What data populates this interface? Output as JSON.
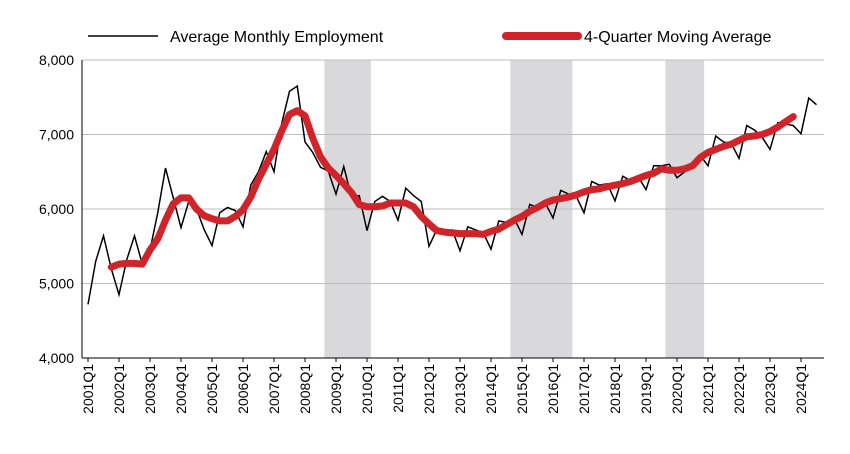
{
  "chart_data": {
    "type": "line",
    "title": "",
    "xlabel": "",
    "ylabel": "",
    "ylim": [
      4000,
      8000
    ],
    "y_ticks": [
      "4,000",
      "5,000",
      "6,000",
      "7,000",
      "8,000"
    ],
    "x_tick_labels": [
      "2001Q1",
      "2002Q1",
      "2003Q1",
      "2004Q1",
      "2005Q1",
      "2006Q1",
      "2007Q1",
      "2008Q1",
      "2009Q1",
      "2010Q1",
      "2011Q1",
      "2012Q1",
      "2013Q1",
      "2014Q1",
      "2015Q1",
      "2016Q1",
      "2017Q1",
      "2018Q1",
      "2019Q1",
      "2020Q1",
      "2021Q1",
      "2022Q1",
      "2023Q1",
      "2024Q1"
    ],
    "legend_position": "top",
    "grid": "horizontal",
    "recession_shading": [
      [
        "2008Q4",
        "2010Q1"
      ],
      [
        "2014Q4",
        "2016Q3"
      ],
      [
        "2019Q4",
        "2020Q4"
      ]
    ],
    "series": [
      {
        "name": "Average Monthly Employment",
        "color": "#000000",
        "start": "2001Q1",
        "values": [
          4720,
          5300,
          5640,
          5200,
          4850,
          5320,
          5640,
          5260,
          5450,
          5950,
          6550,
          6150,
          5750,
          6100,
          6000,
          5720,
          5510,
          5950,
          6020,
          5980,
          5760,
          6320,
          6500,
          6770,
          6500,
          7150,
          7580,
          7650,
          6900,
          6760,
          6560,
          6510,
          6200,
          6570,
          6160,
          6180,
          5710,
          6100,
          6170,
          6100,
          5850,
          6280,
          6180,
          6100,
          5500,
          5720,
          5680,
          5720,
          5440,
          5760,
          5720,
          5680,
          5460,
          5840,
          5820,
          5870,
          5660,
          6060,
          6020,
          6080,
          5880,
          6250,
          6200,
          6170,
          5950,
          6370,
          6320,
          6340,
          6110,
          6440,
          6380,
          6430,
          6260,
          6580,
          6580,
          6600,
          6420,
          6500,
          6560,
          6720,
          6580,
          6980,
          6900,
          6880,
          6680,
          7120,
          7060,
          6960,
          6800,
          7160,
          7140,
          7120,
          7010,
          7490,
          7400
        ]
      },
      {
        "name": "4-Quarter Moving Average",
        "color": "#d0232a",
        "start": "2001Q4",
        "values": [
          5220,
          5260,
          5270,
          5270,
          5260,
          5450,
          5600,
          5850,
          6070,
          6150,
          6150,
          6000,
          5910,
          5870,
          5840,
          5840,
          5900,
          5990,
          6160,
          6400,
          6600,
          6800,
          7050,
          7270,
          7320,
          7250,
          6950,
          6700,
          6550,
          6450,
          6340,
          6220,
          6060,
          6030,
          6030,
          6040,
          6080,
          6080,
          6080,
          6030,
          5900,
          5800,
          5710,
          5690,
          5680,
          5670,
          5670,
          5670,
          5660,
          5700,
          5730,
          5790,
          5850,
          5900,
          5970,
          6020,
          6080,
          6120,
          6140,
          6160,
          6190,
          6230,
          6260,
          6270,
          6300,
          6320,
          6340,
          6370,
          6410,
          6450,
          6480,
          6540,
          6520,
          6520,
          6540,
          6580,
          6690,
          6760,
          6800,
          6840,
          6870,
          6920,
          6970,
          6980,
          7000,
          7040,
          7100,
          7170,
          7240
        ]
      }
    ]
  }
}
